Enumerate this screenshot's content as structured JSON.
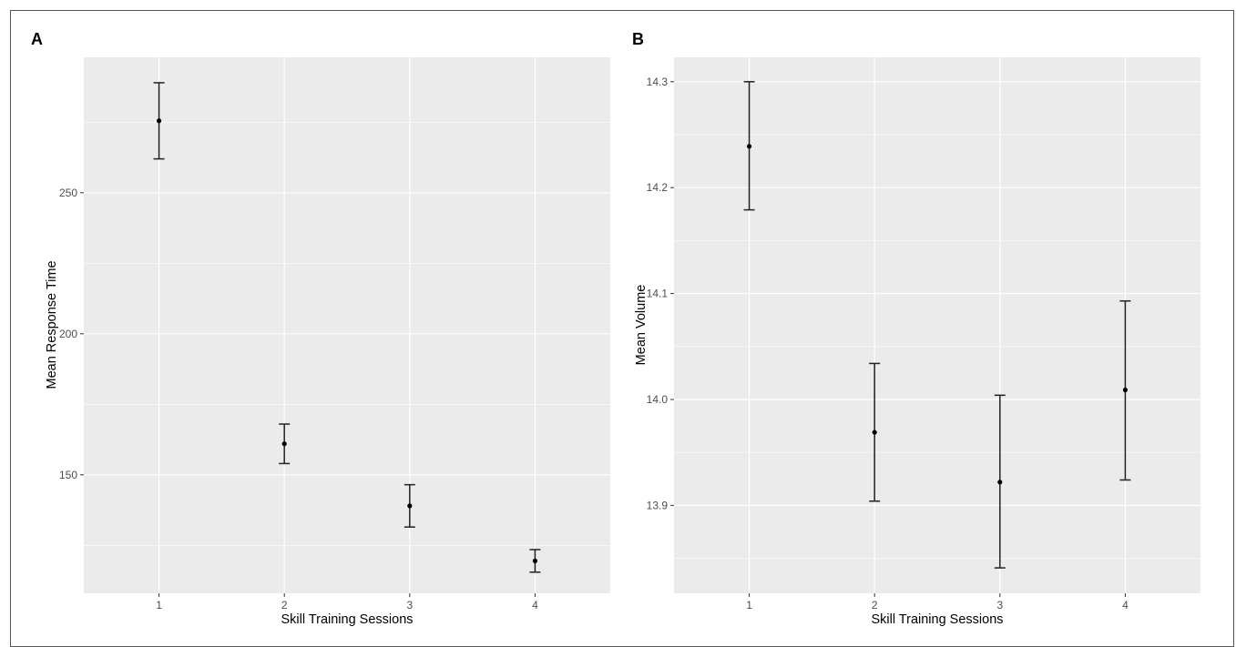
{
  "chart_data": [
    {
      "type": "scatter",
      "panel_label": "A",
      "xlabel": "Skill Training Sessions",
      "ylabel": "Mean Response Time",
      "categories": [
        "1",
        "2",
        "3",
        "4"
      ],
      "x_ticks": [
        "1",
        "2",
        "3",
        "4"
      ],
      "y_ticks": [
        "150",
        "200",
        "250"
      ],
      "ylim": [
        108,
        298
      ],
      "grid": true,
      "points": [
        {
          "x": "1",
          "y": 275.5,
          "lower": 262,
          "upper": 289
        },
        {
          "x": "2",
          "y": 161,
          "lower": 154,
          "upper": 168
        },
        {
          "x": "3",
          "y": 139,
          "lower": 131.5,
          "upper": 146.5
        },
        {
          "x": "4",
          "y": 119.5,
          "lower": 115.5,
          "upper": 123.5
        }
      ]
    },
    {
      "type": "scatter",
      "panel_label": "B",
      "xlabel": "Skill Training Sessions",
      "ylabel": "Mean Volume",
      "categories": [
        "1",
        "2",
        "3",
        "4"
      ],
      "x_ticks": [
        "1",
        "2",
        "3",
        "4"
      ],
      "y_ticks": [
        "13.9",
        "14.0",
        "14.1",
        "14.2",
        "14.3"
      ],
      "ylim": [
        13.817,
        14.323
      ],
      "grid": true,
      "points": [
        {
          "x": "1",
          "y": 14.239,
          "lower": 14.179,
          "upper": 14.3
        },
        {
          "x": "2",
          "y": 13.969,
          "lower": 13.904,
          "upper": 14.034
        },
        {
          "x": "3",
          "y": 13.922,
          "lower": 13.841,
          "upper": 14.004
        },
        {
          "x": "4",
          "y": 14.009,
          "lower": 13.924,
          "upper": 14.093
        }
      ]
    }
  ]
}
